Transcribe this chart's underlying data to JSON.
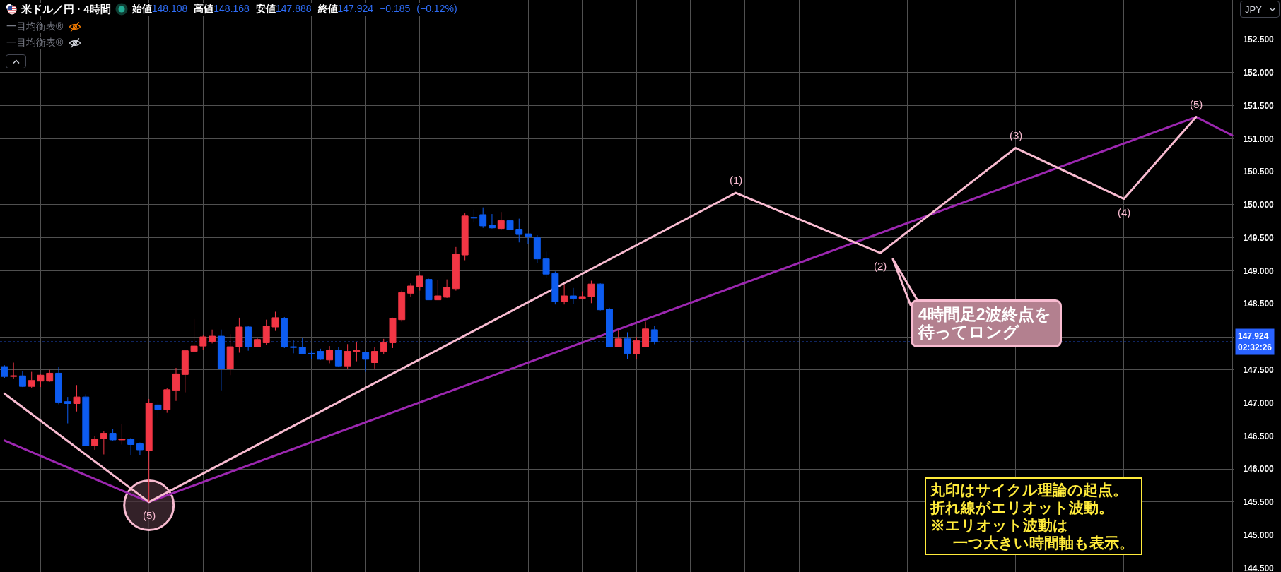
{
  "chart_data": {
    "type": "candlestick",
    "title": "米ドル／円 · 4時間",
    "subtitle": "始値148.108 高値148.168 安値147.888 終値147.924 −0.185 (−0.12%)",
    "ylabel": "JPY",
    "annotations": [
      "一目均衡表®",
      "一目均衡表®",
      "4時間足2波終点を",
      "待ってロング",
      "丸印はサイクル理論の起点。",
      "折れ線がエリオット波動。",
      "※エリオット波動は",
      "一つ大きい時間軸も表示。",
      {
        "text": "(5)",
        "y": 145.5
      },
      {
        "text": "(1)",
        "y": 150.18
      },
      {
        "text": "(2)",
        "y": 149.27
      },
      {
        "text": "(3)",
        "y": 150.86
      },
      {
        "text": "(4)",
        "y": 150.09
      },
      {
        "text": "(5)",
        "y": 151.33
      }
    ],
    "categories": [
      null,
      null,
      null,
      null,
      null,
      null,
      null,
      null,
      null,
      null,
      null,
      null,
      null,
      null,
      null,
      null,
      null,
      null,
      null,
      null,
      null,
      null,
      null,
      null,
      null,
      null,
      null,
      null,
      null,
      null,
      null,
      null,
      null,
      null,
      null,
      null,
      null,
      null,
      null,
      null,
      null,
      null,
      null,
      null,
      null,
      null,
      null,
      null,
      null,
      null,
      null,
      null,
      null,
      null,
      null,
      null,
      null,
      null,
      null,
      null,
      null,
      null,
      null,
      null,
      null,
      null,
      null,
      null,
      null,
      null,
      null,
      null,
      null,
      null,
      null,
      null,
      null,
      null,
      null,
      null,
      null,
      null,
      null,
      null,
      null,
      null,
      null,
      null,
      null,
      null,
      null,
      null,
      null,
      null,
      null,
      null,
      null,
      null,
      null,
      null,
      null,
      null,
      null,
      null,
      null,
      null,
      null,
      null,
      null,
      null,
      null,
      null,
      null,
      null,
      null,
      null,
      null,
      null,
      null,
      null,
      null,
      null,
      null,
      null,
      null,
      null,
      null,
      null,
      null,
      null,
      null,
      null,
      null,
      null,
      null,
      null,
      null
    ],
    "ohlc": [
      [
        147.55,
        147.57,
        147.38,
        147.4
      ],
      [
        147.4,
        147.61,
        147.37,
        147.41
      ],
      [
        147.41,
        147.48,
        147.24,
        147.25
      ],
      [
        147.25,
        147.47,
        147.23,
        147.34
      ],
      [
        147.33,
        147.43,
        147.24,
        147.42
      ],
      [
        147.33,
        147.5,
        147.32,
        147.45
      ],
      [
        147.45,
        147.54,
        146.98,
        147.01
      ],
      [
        147.02,
        147.09,
        146.69,
        146.99
      ],
      [
        146.99,
        147.27,
        146.87,
        147.09
      ],
      [
        147.09,
        147.13,
        146.35,
        146.35
      ],
      [
        146.35,
        146.5,
        146.29,
        146.45
      ],
      [
        146.46,
        146.57,
        146.22,
        146.54
      ],
      [
        146.54,
        146.6,
        146.43,
        146.44
      ],
      [
        146.44,
        146.68,
        146.37,
        146.45
      ],
      [
        146.45,
        146.47,
        146.21,
        146.37
      ],
      [
        146.38,
        146.4,
        146.21,
        146.29
      ],
      [
        146.28,
        147.06,
        145.5,
        147.0
      ],
      [
        146.97,
        147.03,
        146.77,
        146.9
      ],
      [
        146.9,
        147.22,
        146.85,
        147.2
      ],
      [
        147.19,
        147.53,
        147.03,
        147.44
      ],
      [
        147.43,
        147.8,
        147.16,
        147.79
      ],
      [
        147.78,
        148.27,
        147.78,
        147.86
      ],
      [
        147.86,
        148.02,
        147.8,
        148.0
      ],
      [
        147.93,
        148.11,
        147.9,
        148.01
      ],
      [
        148.01,
        148.11,
        147.19,
        147.52
      ],
      [
        147.52,
        148.04,
        147.42,
        147.85
      ],
      [
        147.85,
        148.29,
        147.76,
        148.15
      ],
      [
        148.15,
        148.16,
        147.79,
        147.85
      ],
      [
        147.85,
        147.99,
        147.84,
        147.96
      ],
      [
        147.91,
        148.26,
        147.88,
        148.16
      ],
      [
        148.15,
        148.38,
        148.09,
        148.29
      ],
      [
        148.28,
        148.3,
        147.83,
        147.85
      ],
      [
        147.85,
        147.95,
        147.75,
        147.84
      ],
      [
        147.84,
        147.98,
        147.74,
        147.74
      ],
      [
        147.75,
        147.79,
        147.66,
        147.74
      ],
      [
        147.78,
        147.82,
        147.65,
        147.66
      ],
      [
        147.65,
        147.86,
        147.6,
        147.8
      ],
      [
        147.8,
        147.84,
        147.54,
        147.56
      ],
      [
        147.56,
        147.89,
        147.52,
        147.78
      ],
      [
        147.78,
        147.92,
        147.63,
        147.79
      ],
      [
        147.77,
        147.78,
        147.47,
        147.66
      ],
      [
        147.61,
        147.85,
        147.52,
        147.78
      ],
      [
        147.78,
        147.97,
        147.74,
        147.91
      ],
      [
        147.91,
        148.29,
        147.83,
        148.28
      ],
      [
        148.26,
        148.7,
        148.23,
        148.67
      ],
      [
        148.66,
        148.81,
        148.6,
        148.77
      ],
      [
        148.76,
        148.94,
        148.7,
        148.92
      ],
      [
        148.87,
        148.88,
        148.56,
        148.56
      ],
      [
        148.56,
        148.86,
        148.56,
        148.62
      ],
      [
        148.6,
        148.87,
        148.59,
        148.75
      ],
      [
        148.73,
        149.36,
        148.7,
        149.25
      ],
      [
        149.24,
        149.87,
        149.16,
        149.83
      ],
      [
        149.81,
        149.93,
        149.74,
        149.8
      ],
      [
        149.85,
        149.96,
        149.65,
        149.68
      ],
      [
        149.69,
        149.86,
        149.64,
        149.65
      ],
      [
        149.64,
        149.89,
        149.62,
        149.76
      ],
      [
        149.76,
        149.96,
        149.59,
        149.62
      ],
      [
        149.63,
        149.79,
        149.43,
        149.55
      ],
      [
        149.56,
        149.56,
        149.41,
        149.52
      ],
      [
        149.5,
        149.54,
        149.12,
        149.18
      ],
      [
        149.18,
        149.29,
        148.89,
        148.95
      ],
      [
        148.96,
        148.99,
        148.49,
        148.53
      ],
      [
        148.53,
        148.79,
        148.49,
        148.62
      ],
      [
        148.62,
        148.74,
        148.5,
        148.58
      ],
      [
        148.58,
        148.69,
        148.57,
        148.61
      ],
      [
        148.61,
        148.85,
        148.51,
        148.8
      ],
      [
        148.8,
        148.81,
        148.4,
        148.41
      ],
      [
        148.42,
        148.44,
        147.85,
        147.85
      ],
      [
        147.85,
        148.1,
        147.84,
        147.97
      ],
      [
        147.97,
        148.07,
        147.66,
        147.75
      ],
      [
        147.74,
        148.0,
        147.66,
        147.94
      ],
      [
        147.85,
        148.23,
        147.85,
        148.12
      ],
      [
        148.108,
        148.168,
        147.888,
        147.924
      ],
      null,
      null,
      null,
      null,
      null,
      null,
      null,
      null,
      null,
      null,
      null,
      null,
      null,
      null,
      null,
      null,
      null,
      null,
      null,
      null,
      null,
      null,
      null,
      null,
      null,
      null,
      null,
      null,
      null,
      null,
      null,
      null,
      null,
      null,
      null,
      null,
      null,
      null,
      null,
      null,
      null,
      null,
      null,
      null,
      null,
      null,
      null,
      null,
      null,
      null,
      null,
      null,
      null,
      null,
      null,
      null,
      null,
      null,
      null,
      null,
      null,
      null,
      null,
      null
    ],
    "colors": [
      "#0d5cf0",
      "#f23645",
      "#0d5cf0",
      "#f23645",
      "#f23645",
      "#f23645",
      "#0d5cf0",
      "#0d5cf0",
      "#f23645",
      "#0d5cf0",
      "#f23645",
      "#f23645",
      "#0d5cf0",
      "#f23645",
      "#0d5cf0",
      "#0d5cf0",
      "#f23645",
      "#0d5cf0",
      "#f23645",
      "#f23645",
      "#f23645",
      "#f23645",
      "#f23645",
      "#f23645",
      "#0d5cf0",
      "#f23645",
      "#f23645",
      "#0d5cf0",
      "#f23645",
      "#f23645",
      "#f23645",
      "#0d5cf0",
      "#0d5cf0",
      "#0d5cf0",
      "#0d5cf0",
      "#0d5cf0",
      "#f23645",
      "#0d5cf0",
      "#f23645",
      "#f23645",
      "#0d5cf0",
      "#f23645",
      "#f23645",
      "#f23645",
      "#f23645",
      "#f23645",
      "#f23645",
      "#0d5cf0",
      "#f23645",
      "#f23645",
      "#f23645",
      "#f23645",
      "#0d5cf0",
      "#0d5cf0",
      "#0d5cf0",
      "#f23645",
      "#0d5cf0",
      "#0d5cf0",
      "#0d5cf0",
      "#0d5cf0",
      "#0d5cf0",
      "#0d5cf0",
      "#f23645",
      "#0d5cf0",
      "#f23645",
      "#f23645",
      "#0d5cf0",
      "#0d5cf0",
      "#f23645",
      "#0d5cf0",
      "#f23645",
      "#f23645",
      "#0d5cf0",
      null,
      null,
      null,
      null,
      null,
      null,
      null,
      null,
      null,
      null,
      null,
      null,
      null,
      null,
      null,
      null,
      null,
      null,
      null,
      null,
      null,
      null,
      null,
      null,
      null,
      null,
      null,
      null,
      null,
      null,
      null,
      null,
      null,
      null,
      null,
      null,
      null,
      null,
      null,
      null,
      null,
      null,
      null,
      null,
      null,
      null,
      null,
      null,
      null,
      null,
      null,
      null,
      null,
      null,
      null,
      null,
      null,
      null,
      null,
      null,
      null,
      null,
      null,
      null
    ],
    "series": [
      {
        "type": "scatter",
        "color": "#f8bbd0",
        "marker": "circle",
        "values": [
          null,
          null,
          null,
          null,
          null,
          null,
          null,
          null,
          null,
          null,
          null,
          null,
          null,
          null,
          null,
          null,
          145.45,
          null,
          null,
          null,
          null,
          null,
          null,
          null,
          null,
          null,
          null,
          null,
          null,
          null,
          null,
          null,
          null,
          null,
          null,
          null,
          null,
          null,
          null,
          null,
          null,
          null,
          null,
          null,
          null,
          null,
          null,
          null,
          null,
          null,
          null,
          null,
          null,
          null,
          null,
          null,
          null,
          null,
          null,
          null,
          null,
          null,
          null,
          null,
          null,
          null,
          null,
          null,
          null,
          null,
          null,
          null,
          null,
          null,
          null,
          null,
          null,
          null,
          null,
          null,
          null,
          null,
          null,
          null,
          null,
          null,
          null,
          null,
          null,
          null,
          null,
          null,
          null,
          null,
          null,
          null,
          null,
          null,
          null,
          null,
          null,
          null,
          null,
          null,
          null,
          null,
          null,
          null,
          null,
          null,
          null,
          null,
          null,
          null,
          null,
          null,
          null,
          null,
          null,
          null,
          null,
          null,
          null,
          null,
          null,
          null,
          null,
          null,
          null,
          null,
          null,
          null,
          null,
          null,
          null,
          null,
          null
        ]
      },
      {
        "type": "line",
        "color": "#9c27b0",
        "values": [
          146.43,
          null,
          null,
          null,
          null,
          null,
          null,
          null,
          null,
          null,
          null,
          null,
          null,
          null,
          null,
          null,
          145.5,
          null,
          null,
          null,
          null,
          null,
          null,
          null,
          null,
          null,
          null,
          null,
          null,
          null,
          null,
          null,
          null,
          null,
          null,
          null,
          null,
          null,
          null,
          null,
          null,
          null,
          null,
          null,
          null,
          null,
          null,
          null,
          null,
          null,
          null,
          null,
          null,
          null,
          null,
          null,
          null,
          null,
          null,
          null,
          null,
          null,
          null,
          null,
          null,
          null,
          null,
          null,
          null,
          null,
          null,
          null,
          null,
          null,
          null,
          null,
          null,
          null,
          null,
          null,
          null,
          null,
          null,
          null,
          null,
          null,
          null,
          null,
          null,
          null,
          null,
          null,
          null,
          null,
          null,
          null,
          null,
          null,
          null,
          null,
          null,
          null,
          null,
          null,
          null,
          null,
          null,
          null,
          null,
          null,
          null,
          null,
          null,
          null,
          null,
          null,
          null,
          null,
          null,
          null,
          null,
          null,
          null,
          null,
          null,
          null,
          null,
          null,
          null,
          null,
          null,
          null,
          151.33,
          null,
          null,
          null,
          151.05
        ]
      },
      {
        "type": "line",
        "color": "#f8bbd0",
        "values": [
          147.14,
          null,
          null,
          null,
          null,
          null,
          null,
          null,
          null,
          null,
          null,
          null,
          null,
          null,
          null,
          null,
          145.5,
          null,
          null,
          null,
          null,
          null,
          null,
          null,
          null,
          null,
          null,
          null,
          null,
          null,
          null,
          null,
          null,
          null,
          null,
          null,
          null,
          null,
          null,
          null,
          null,
          null,
          null,
          null,
          null,
          null,
          null,
          null,
          null,
          null,
          null,
          null,
          null,
          null,
          null,
          null,
          null,
          null,
          null,
          null,
          null,
          null,
          null,
          null,
          null,
          null,
          null,
          null,
          null,
          null,
          null,
          null,
          null,
          null,
          null,
          null,
          null,
          null,
          null,
          null,
          null,
          150.18,
          null,
          null,
          null,
          null,
          null,
          null,
          null,
          null,
          null,
          null,
          null,
          null,
          null,
          null,
          null,
          149.27,
          null,
          null,
          null,
          null,
          null,
          null,
          null,
          null,
          null,
          null,
          null,
          null,
          null,
          null,
          150.86,
          null,
          null,
          null,
          null,
          null,
          null,
          null,
          null,
          null,
          null,
          null,
          150.09,
          null,
          null,
          null,
          null,
          null,
          null,
          null,
          151.33,
          null,
          null,
          null,
          null
        ]
      }
    ],
    "ylim": [
      144.44,
      153.1
    ],
    "yticks": [
      {
        "value": 144.5,
        "label": "144.500"
      },
      {
        "value": 145,
        "label": "145.000"
      },
      {
        "value": 145.5,
        "label": "145.500"
      },
      {
        "value": 146,
        "label": "146.000"
      },
      {
        "value": 146.5,
        "label": "146.500"
      },
      {
        "value": 147,
        "label": "147.000"
      },
      {
        "value": 147.5,
        "label": "147.500"
      },
      {
        "value": 148,
        "label": null
      },
      {
        "value": 148.5,
        "label": "148.500"
      },
      {
        "value": 149,
        "label": "149.000"
      },
      {
        "value": 149.5,
        "label": "149.500"
      },
      {
        "value": 150,
        "label": "150.000"
      },
      {
        "value": 150.5,
        "label": "150.500"
      },
      {
        "value": 151,
        "label": "151.000"
      },
      {
        "value": 151.5,
        "label": "151.500"
      },
      {
        "value": 152,
        "label": "152.000"
      },
      {
        "value": 152.5,
        "label": "152.500"
      }
    ],
    "ref_lines": [
      {
        "axis": "y",
        "value": 147.924,
        "label": "147.924\n02:32:26",
        "color": "#2962ff",
        "line_style": "dotted"
      }
    ],
    "grid": true,
    "tick_labels": "y"
  }
}
